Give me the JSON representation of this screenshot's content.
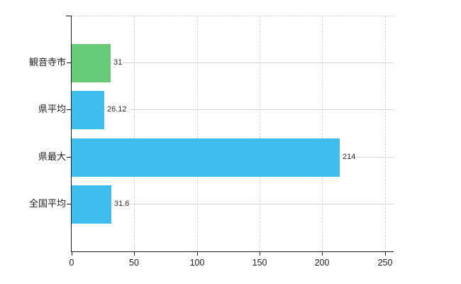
{
  "chart_data": {
    "type": "bar",
    "orientation": "horizontal",
    "title": "",
    "categories": [
      "観音寺市",
      "県平均",
      "県最大",
      "全国平均"
    ],
    "values": [
      31,
      26.12,
      214,
      31.6
    ],
    "value_labels": [
      "31",
      "26.12",
      "214",
      "31.6"
    ],
    "bar_colors": [
      "#67cb78",
      "#3ebeee",
      "#3ebeee",
      "#3ebeee"
    ],
    "x_ticks": [
      0,
      50,
      100,
      150,
      200,
      250
    ],
    "x_tick_labels": [
      "0",
      "50",
      "100",
      "150",
      "200",
      "250"
    ],
    "xlim": [
      0,
      257
    ],
    "ylabel": "",
    "xlabel": "",
    "legend": "none",
    "grid": {
      "vertical": "dashed",
      "horizontal": "solid at row centers",
      "top_border": "dashed"
    },
    "background": "#ffffff"
  },
  "colors": {
    "axis": "#1a1a1a",
    "gridline": "#d4d4d4",
    "text": "#1f1f1f",
    "bar_green": "#67cb78",
    "bar_blue": "#3ebeee",
    "background": "#ffffff"
  }
}
